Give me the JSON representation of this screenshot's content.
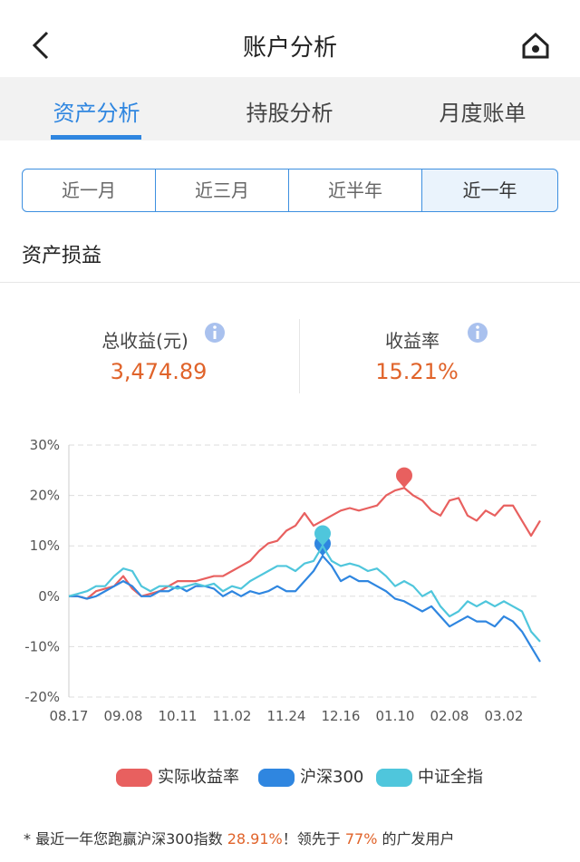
{
  "header": {
    "title": "账户分析"
  },
  "tabs": [
    "资产分析",
    "持股分析",
    "月度账单"
  ],
  "periods": [
    "近一月",
    "近三月",
    "近半年",
    "近一年"
  ],
  "section_title": "资产损益",
  "stats": {
    "total_label": "总收益(元)",
    "total": "3,474.89",
    "rate_label": "收益率",
    "rate": "15.21%"
  },
  "footer": {
    "mark": "*",
    "prefix": "最近一年您跑赢沪深300指数",
    "beat": "28.91%",
    "middle": "！领先于",
    "rank": "77%",
    "suffix": "的广发用户"
  },
  "chart_data": {
    "type": "line",
    "categories": [
      "08.17",
      null,
      null,
      null,
      null,
      null,
      "09.08",
      null,
      null,
      null,
      null,
      null,
      "10.11",
      null,
      null,
      null,
      null,
      null,
      "11.02",
      null,
      null,
      null,
      null,
      null,
      "11.24",
      null,
      null,
      null,
      null,
      null,
      "12.16",
      null,
      null,
      null,
      null,
      null,
      "01.10",
      null,
      null,
      null,
      null,
      null,
      "02.08",
      null,
      null,
      null,
      null,
      null,
      "03.02",
      null,
      null,
      null,
      null
    ],
    "series": [
      {
        "name": "实际收益率",
        "color": "#e8605f",
        "values": [
          0,
          0,
          -0.5,
          1,
          1.5,
          2,
          4,
          1.5,
          0,
          0.5,
          1,
          2,
          3,
          3,
          3,
          3.5,
          4,
          4,
          5,
          6,
          7,
          9,
          10.5,
          11,
          13,
          14,
          16.5,
          14,
          15,
          16,
          17,
          17.5,
          17,
          17.5,
          18,
          20,
          21,
          21.5,
          20,
          19,
          17,
          16,
          19,
          19.5,
          16,
          15,
          17,
          16,
          18,
          18,
          15,
          12,
          15
        ]
      },
      {
        "name": "沪深300",
        "color": "#2f86e0",
        "values": [
          0,
          0,
          -0.5,
          0,
          1,
          2,
          3,
          2,
          0,
          0,
          1,
          1,
          2,
          1,
          2,
          2,
          1.5,
          0,
          1,
          0,
          1,
          0.5,
          1,
          2,
          1,
          1,
          3,
          5,
          8,
          6,
          3,
          4,
          3,
          3,
          2,
          1,
          -0.5,
          -1,
          -2,
          -3,
          -2,
          -4,
          -6,
          -5,
          -4,
          -5,
          -5,
          -6,
          -4,
          -5,
          -7,
          -10,
          -13
        ]
      },
      {
        "name": "中证全指",
        "color": "#4fc6dc",
        "values": [
          0,
          0.5,
          1,
          2,
          2,
          4,
          5.5,
          5,
          2,
          1,
          2,
          2,
          1.5,
          2,
          2.5,
          2,
          2.5,
          1,
          2,
          1.5,
          3,
          4,
          5,
          6,
          6,
          5,
          6.5,
          7,
          10,
          7,
          6,
          6.5,
          6,
          5,
          5.5,
          4,
          2,
          3,
          2,
          0,
          1,
          -2,
          -4,
          -3,
          -1,
          -2,
          -1,
          -2,
          -1,
          -2,
          -3,
          -7,
          -9
        ]
      }
    ],
    "ylim": [
      -20,
      30
    ],
    "yticks": [
      {
        "value": 30,
        "label": "30%"
      },
      {
        "value": 20,
        "label": "20%"
      },
      {
        "value": 10,
        "label": "10%"
      },
      {
        "value": 0,
        "label": "0%"
      },
      {
        "value": -10,
        "label": "-10%"
      },
      {
        "value": -20,
        "label": "-20%"
      }
    ],
    "grid": true
  }
}
